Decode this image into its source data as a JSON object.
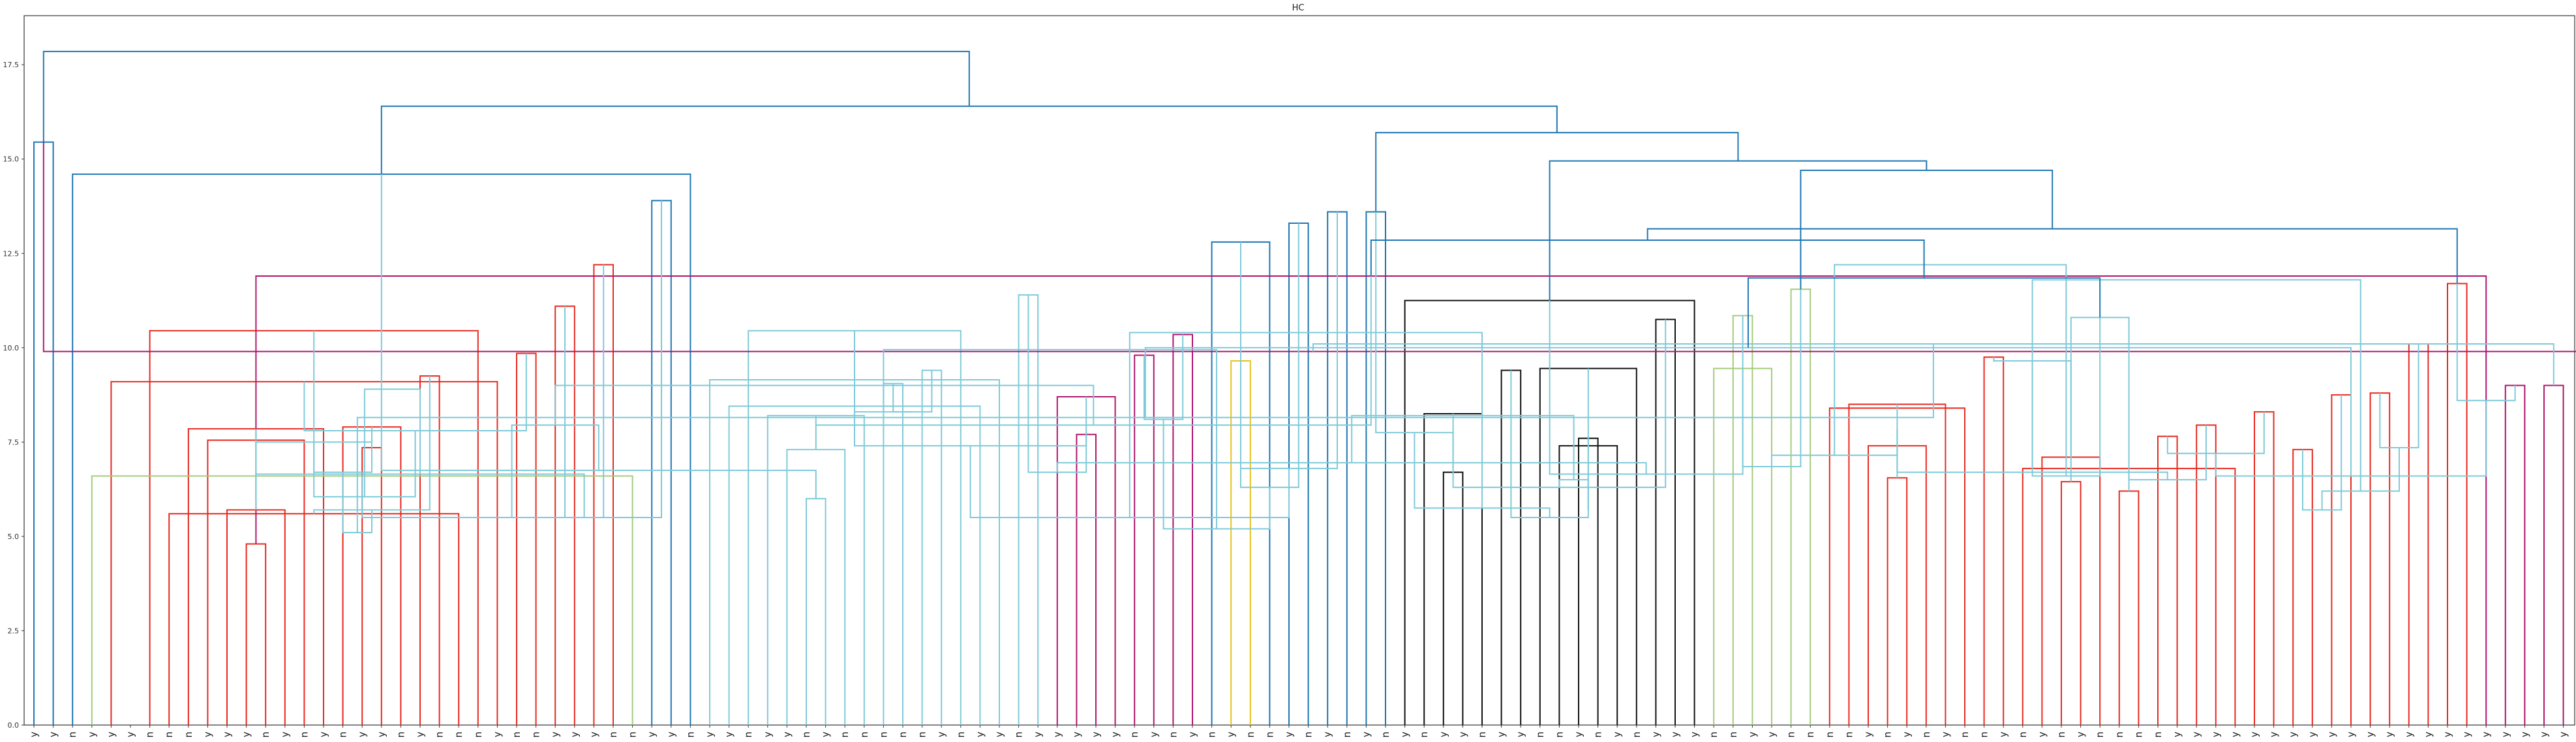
{
  "chart_data": {
    "type": "dendrogram",
    "title": "HC",
    "xlabel": "",
    "ylabel": "",
    "ylim": [
      0,
      18.8
    ],
    "yticks": [
      0.0,
      2.5,
      5.0,
      7.5,
      10.0,
      12.5,
      15.0,
      17.5
    ],
    "ytick_labels": [
      "0.0",
      "2.5",
      "5.0",
      "7.5",
      "10.0",
      "12.5",
      "15.0",
      "17.5"
    ],
    "grid": false,
    "leaves": [
      "y",
      "y",
      "n",
      "y",
      "y",
      "y",
      "n",
      "n",
      "n",
      "y",
      "y",
      "y",
      "n",
      "y",
      "n",
      "y",
      "n",
      "y",
      "y",
      "n",
      "y",
      "n",
      "n",
      "n",
      "y",
      "n",
      "n",
      "y",
      "y",
      "y",
      "n",
      "n",
      "y",
      "y",
      "n",
      "y",
      "y",
      "n",
      "y",
      "y",
      "n",
      "y",
      "n",
      "n",
      "n",
      "n",
      "n",
      "y",
      "n",
      "y",
      "y",
      "n",
      "y",
      "y",
      "y",
      "y",
      "y",
      "n",
      "y",
      "n",
      "y",
      "n",
      "y",
      "n",
      "n",
      "y",
      "n",
      "y",
      "n",
      "y",
      "n",
      "y",
      "n",
      "y",
      "y",
      "n",
      "y",
      "y",
      "n",
      "n",
      "y",
      "n",
      "y",
      "n",
      "y",
      "y",
      "y",
      "n",
      "n",
      "y",
      "y",
      "n",
      "n",
      "n",
      "n",
      "y",
      "n",
      "y",
      "n",
      "y",
      "n",
      "n",
      "y",
      "n",
      "y",
      "n",
      "y",
      "n",
      "n",
      "n",
      "n",
      "y",
      "y",
      "y",
      "y",
      "y",
      "y",
      "y",
      "y",
      "y",
      "y",
      "y",
      "y",
      "y",
      "y",
      "y",
      "y",
      "y",
      "y",
      "y",
      "y",
      "y",
      "y"
    ],
    "colors": {
      "root": "#1f77b4",
      "red": "#e8291f",
      "cyan": "#7fcad9",
      "magenta": "#b0166e",
      "olive": "#a4cc7a",
      "gold": "#e8c31a",
      "black": "#111111"
    },
    "links": [
      [
        0,
        1,
        15.45,
        "root"
      ],
      [
        11,
        12,
        4.8,
        "red"
      ],
      [
        10,
        13,
        5.7,
        "red"
      ],
      [
        9,
        14,
        7.55,
        "red"
      ],
      [
        8,
        15,
        7.85,
        "red"
      ],
      [
        17,
        18,
        7.35,
        "red"
      ],
      [
        16,
        19,
        7.9,
        "red"
      ],
      [
        20,
        21,
        9.25,
        "red"
      ],
      [
        7,
        22,
        5.6,
        "red"
      ],
      [
        6,
        23,
        10.45,
        "red"
      ],
      [
        4,
        24,
        9.1,
        "red"
      ],
      [
        25,
        26,
        9.85,
        "red"
      ],
      [
        27,
        28,
        11.1,
        "red"
      ],
      [
        29,
        30,
        12.2,
        "red"
      ],
      [
        3,
        31,
        6.6,
        "olive"
      ],
      [
        32,
        33,
        13.9,
        "root"
      ],
      [
        2,
        34,
        14.6,
        "root"
      ],
      [
        40,
        41,
        6.0,
        "cyan"
      ],
      [
        39,
        42,
        7.3,
        "cyan"
      ],
      [
        38,
        43,
        8.2,
        "cyan"
      ],
      [
        44,
        45,
        9.05,
        "cyan"
      ],
      [
        46,
        47,
        9.4,
        "cyan"
      ],
      [
        37,
        48,
        10.45,
        "cyan"
      ],
      [
        36,
        49,
        8.45,
        "cyan"
      ],
      [
        35,
        50,
        9.15,
        "cyan"
      ],
      [
        51,
        52,
        11.4,
        "cyan"
      ],
      [
        54,
        55,
        7.7,
        "magenta"
      ],
      [
        53,
        56,
        8.7,
        "magenta"
      ],
      [
        57,
        58,
        9.8,
        "magenta"
      ],
      [
        59,
        60,
        10.35,
        "magenta"
      ],
      [
        62,
        63,
        9.65,
        "gold"
      ],
      [
        61,
        64,
        12.8,
        "root"
      ],
      [
        65,
        66,
        13.3,
        "root"
      ],
      [
        67,
        68,
        13.6,
        "root"
      ],
      [
        69,
        70,
        13.6,
        "root"
      ],
      [
        73,
        74,
        6.7,
        "black"
      ],
      [
        72,
        75,
        8.25,
        "black"
      ],
      [
        76,
        77,
        9.4,
        "black"
      ],
      [
        80,
        81,
        7.6,
        "black"
      ],
      [
        79,
        82,
        7.4,
        "black"
      ],
      [
        78,
        83,
        9.45,
        "black"
      ],
      [
        84,
        85,
        10.75,
        "black"
      ],
      [
        71,
        86,
        11.25,
        "black"
      ],
      [
        88,
        89,
        10.85,
        "olive"
      ],
      [
        87,
        90,
        9.45,
        "olive"
      ],
      [
        91,
        92,
        11.55,
        "olive"
      ],
      [
        96,
        97,
        6.55,
        "red"
      ],
      [
        95,
        98,
        7.4,
        "red"
      ],
      [
        94,
        99,
        8.5,
        "red"
      ],
      [
        93,
        100,
        8.4,
        "red"
      ],
      [
        101,
        102,
        9.75,
        "red"
      ],
      [
        105,
        106,
        6.45,
        "red"
      ],
      [
        104,
        107,
        7.1,
        "red"
      ],
      [
        108,
        109,
        6.2,
        "red"
      ],
      [
        110,
        111,
        7.65,
        "red"
      ],
      [
        112,
        113,
        7.95,
        "red"
      ],
      [
        103,
        114,
        6.8,
        "red"
      ],
      [
        115,
        116,
        8.3,
        "red"
      ],
      [
        117,
        118,
        7.3,
        "red"
      ],
      [
        119,
        120,
        8.75,
        "red"
      ],
      [
        121,
        122,
        8.8,
        "red"
      ],
      [
        123,
        124,
        10.1,
        "red"
      ],
      [
        125,
        126,
        11.7,
        "red"
      ],
      [
        128,
        129,
        9.0,
        "magenta"
      ],
      [
        130,
        131,
        9.0,
        "magenta"
      ],
      [
        132,
        133,
        9.9,
        "magenta"
      ],
      [
        127,
        134,
        11.9,
        "magenta"
      ]
    ],
    "cyan_block": {
      "left": [
        [
          136,
          137,
          6.0
        ],
        [
          135,
          138,
          7.5
        ],
        [
          140,
          141,
          5.7
        ],
        [
          139,
          142,
          6.7
        ],
        [
          143,
          144,
          7.8
        ],
        [
          145,
          146,
          5.5
        ],
        [
          147,
          148,
          5.5
        ],
        [
          149,
          150,
          6.75
        ],
        [
          151,
          152,
          7.95
        ],
        [
          153,
          154,
          8.3
        ],
        [
          155,
          156,
          8.6
        ],
        [
          158,
          159,
          6.7
        ],
        [
          157,
          160,
          7.4
        ],
        [
          161,
          162,
          8.1
        ],
        [
          164,
          165,
          6.3
        ],
        [
          163,
          166,
          6.8
        ],
        [
          167,
          168,
          7.75
        ],
        [
          170,
          171,
          5.5
        ],
        [
          172,
          173,
          5.7
        ],
        [
          169,
          174,
          6.3
        ],
        [
          175,
          176,
          6.65
        ],
        [
          177,
          178,
          6.85
        ],
        [
          179,
          180,
          7.85
        ],
        [
          181,
          182,
          8.45
        ],
        [
          183,
          184,
          9.65
        ],
        [
          185,
          186,
          10.8
        ]
      ],
      "right": [
        [
          188,
          189,
          6.5
        ],
        [
          187,
          190,
          7.2
        ],
        [
          191,
          192,
          5.7
        ],
        [
          193,
          194,
          7.35
        ],
        [
          195,
          196,
          8.6
        ],
        [
          197,
          198,
          10.1
        ],
        [
          202,
          203,
          5.1
        ],
        [
          201,
          204,
          6.05
        ],
        [
          200,
          205,
          6.65
        ],
        [
          206,
          207,
          7.95
        ],
        [
          199,
          208,
          7.95
        ],
        [
          209,
          210,
          8.3
        ],
        [
          213,
          214,
          5.2
        ],
        [
          212,
          215,
          5.5
        ],
        [
          216,
          217,
          5.75
        ],
        [
          218,
          219,
          6.5
        ],
        [
          211,
          220,
          6.95
        ],
        [
          221,
          222,
          7.15
        ],
        [
          224,
          225,
          6.6
        ],
        [
          223,
          226,
          6.7
        ],
        [
          228,
          229,
          6.2
        ],
        [
          227,
          230,
          6.6
        ],
        [
          231,
          232,
          8.15
        ],
        [
          233,
          234,
          8.9
        ],
        [
          235,
          236,
          9.0
        ],
        [
          237,
          238,
          9.95
        ],
        [
          239,
          240,
          10.4
        ],
        [
          241,
          242,
          8.2
        ],
        [
          243,
          244,
          12.2
        ],
        [
          245,
          246,
          11.8
        ],
        [
          247,
          248,
          10.0
        ]
      ]
    }
  }
}
